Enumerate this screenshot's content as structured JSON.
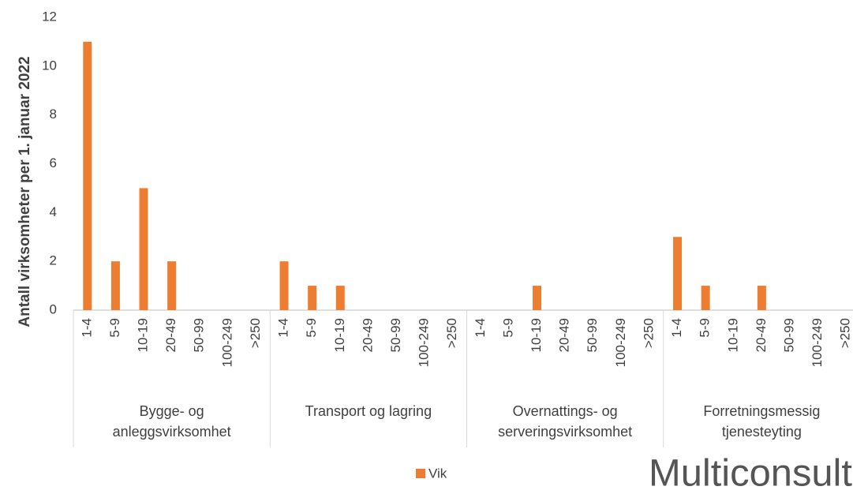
{
  "chart_data": {
    "type": "bar",
    "y_axis_label": "Antall virksomheter per 1. januar 2022",
    "groups": [
      "Bygge- og anleggsvirksomhet",
      "Transport og lagring",
      "Overnattings- og serveringsvirksomhet",
      "Forretningsmessig tjenesteyting"
    ],
    "categories": [
      "1-4",
      "5-9",
      "10-19",
      "20-49",
      "50-99",
      "100-249",
      ">250",
      "1-4",
      "5-9",
      "10-19",
      "20-49",
      "50-99",
      "100-249",
      ">250",
      "1-4",
      "5-9",
      "10-19",
      "20-49",
      "50-99",
      "100-249",
      ">250",
      "1-4",
      "5-9",
      "10-19",
      "20-49",
      "50-99",
      "100-249",
      ">250"
    ],
    "series": [
      {
        "name": "Vik",
        "color": "#ed7d31",
        "values": [
          11,
          2,
          5,
          2,
          0,
          0,
          0,
          2,
          1,
          1,
          0,
          0,
          0,
          0,
          0,
          0,
          1,
          0,
          0,
          0,
          0,
          3,
          1,
          0,
          1,
          0,
          0,
          0
        ]
      }
    ],
    "ylim": [
      0,
      12
    ],
    "yticks": [
      0,
      2,
      4,
      6,
      8,
      10,
      12
    ],
    "grid": false,
    "legend": "bottom"
  },
  "logo": "Multiconsult"
}
